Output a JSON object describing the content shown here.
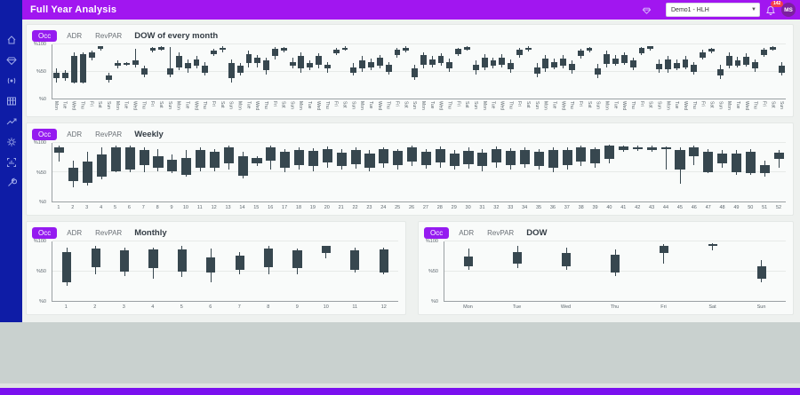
{
  "header": {
    "title": "Full Year Analysis",
    "property_selector_value": "Demo1 - HLH",
    "notification_count": "142",
    "avatar_initials": "MS"
  },
  "sidebar": {
    "items": [
      {
        "icon": "home-icon"
      },
      {
        "icon": "gem-icon"
      },
      {
        "icon": "broadcast-icon"
      },
      {
        "icon": "table-icon"
      },
      {
        "icon": "trend-line-icon"
      },
      {
        "icon": "gear-icon"
      },
      {
        "icon": "dashboard-frame-icon"
      },
      {
        "icon": "wrench-icon"
      }
    ]
  },
  "tab_labels": {
    "occ": "Occ",
    "adr": "ADR",
    "revpar": "RevPAR"
  },
  "colors": {
    "topbar": "#a116f0",
    "sidebar": "#0e1ca6",
    "active_tab": "#951bf0",
    "candle": "#37474f",
    "badge": "#f43f4b",
    "footer_bar": "#7a10ef"
  },
  "chart_data": [
    {
      "ref": "dow_of_every_month"
    },
    {
      "ref": "weekly"
    },
    {
      "ref": "monthly"
    },
    {
      "ref": "dow"
    }
  ],
  "charts": {
    "dow_of_every_month": {
      "type": "candlestick",
      "title": "DOW of every month",
      "ylim": [
        0,
        100
      ],
      "y_ticks": [
        "%0",
        "%50",
        "%100"
      ],
      "x_labels": [
        "Mon",
        "Tue",
        "Wed",
        "Thu",
        "Fri",
        "Sat",
        "Sun",
        "Mon",
        "Tue",
        "Wed",
        "Thu",
        "Fri",
        "Sat",
        "Sun",
        "Mon",
        "Tue",
        "Wed",
        "Thu",
        "Fri",
        "Sat",
        "Sun",
        "Mon",
        "Tue",
        "Wed",
        "Thu",
        "Fri",
        "Sat",
        "Sun",
        "Mon",
        "Tue",
        "Wed",
        "Thu",
        "Fri",
        "Sat",
        "Sun",
        "Mon",
        "Tue",
        "Wed",
        "Thu",
        "Fri",
        "Sat",
        "Sun",
        "Mon",
        "Tue",
        "Wed",
        "Thu",
        "Fri",
        "Sat",
        "Sun",
        "Mon",
        "Tue",
        "Wed",
        "Thu",
        "Fri",
        "Sat",
        "Sun",
        "Mon",
        "Tue",
        "Wed",
        "Thu",
        "Fri",
        "Sat",
        "Sun",
        "Mon",
        "Tue",
        "Wed",
        "Thu",
        "Fri",
        "Sat",
        "Sun",
        "Mon",
        "Tue",
        "Wed",
        "Thu",
        "Fri",
        "Sat",
        "Sun",
        "Mon",
        "Tue",
        "Wed",
        "Thu",
        "Fri",
        "Sat",
        "Sun"
      ],
      "candles": [
        [
          30,
          38,
          48,
          55
        ],
        [
          32,
          38,
          48,
          52
        ],
        [
          28,
          30,
          78,
          85
        ],
        [
          28,
          30,
          82,
          85
        ],
        [
          70,
          75,
          85,
          88
        ],
        [
          88,
          92,
          96,
          97
        ],
        [
          30,
          35,
          42,
          48
        ],
        [
          55,
          60,
          65,
          70
        ],
        [
          60,
          63,
          65,
          68
        ],
        [
          58,
          62,
          70,
          92
        ],
        [
          40,
          45,
          55,
          60
        ],
        [
          85,
          88,
          93,
          95
        ],
        [
          88,
          91,
          95,
          96
        ],
        [
          40,
          45,
          55,
          95
        ],
        [
          52,
          58,
          78,
          85
        ],
        [
          48,
          55,
          65,
          72
        ],
        [
          55,
          60,
          72,
          78
        ],
        [
          42,
          48,
          60,
          68
        ],
        [
          78,
          82,
          88,
          92
        ],
        [
          86,
          90,
          94,
          96
        ],
        [
          30,
          38,
          65,
          72
        ],
        [
          42,
          48,
          60,
          66
        ],
        [
          58,
          65,
          82,
          88
        ],
        [
          58,
          65,
          75,
          80
        ],
        [
          45,
          52,
          70,
          76
        ],
        [
          72,
          78,
          92,
          95
        ],
        [
          85,
          88,
          93,
          95
        ],
        [
          55,
          60,
          68,
          75
        ],
        [
          48,
          55,
          78,
          85
        ],
        [
          52,
          58,
          65,
          70
        ],
        [
          55,
          62,
          78,
          84
        ],
        [
          48,
          55,
          62,
          68
        ],
        [
          80,
          84,
          90,
          93
        ],
        [
          88,
          90,
          94,
          96
        ],
        [
          42,
          48,
          58,
          65
        ],
        [
          50,
          55,
          70,
          78
        ],
        [
          52,
          58,
          68,
          74
        ],
        [
          55,
          60,
          75,
          80
        ],
        [
          45,
          50,
          62,
          68
        ],
        [
          75,
          80,
          90,
          93
        ],
        [
          86,
          89,
          94,
          96
        ],
        [
          35,
          40,
          55,
          62
        ],
        [
          55,
          62,
          80,
          86
        ],
        [
          58,
          62,
          72,
          78
        ],
        [
          60,
          65,
          78,
          84
        ],
        [
          50,
          55,
          68,
          74
        ],
        [
          78,
          82,
          92,
          94
        ],
        [
          88,
          91,
          95,
          97
        ],
        [
          45,
          52,
          62,
          70
        ],
        [
          52,
          58,
          75,
          82
        ],
        [
          55,
          60,
          70,
          76
        ],
        [
          58,
          62,
          76,
          82
        ],
        [
          48,
          54,
          66,
          72
        ],
        [
          76,
          80,
          90,
          93
        ],
        [
          87,
          90,
          94,
          96
        ],
        [
          40,
          46,
          58,
          66
        ],
        [
          50,
          56,
          74,
          80
        ],
        [
          54,
          58,
          68,
          74
        ],
        [
          56,
          60,
          74,
          80
        ],
        [
          46,
          52,
          64,
          70
        ],
        [
          74,
          78,
          88,
          92
        ],
        [
          85,
          88,
          93,
          95
        ],
        [
          38,
          44,
          56,
          64
        ],
        [
          58,
          64,
          82,
          88
        ],
        [
          60,
          64,
          74,
          80
        ],
        [
          62,
          66,
          80,
          86
        ],
        [
          52,
          58,
          70,
          76
        ],
        [
          80,
          84,
          93,
          95
        ],
        [
          89,
          92,
          96,
          97
        ],
        [
          48,
          54,
          64,
          72
        ],
        [
          48,
          54,
          72,
          78
        ],
        [
          52,
          56,
          66,
          72
        ],
        [
          54,
          58,
          72,
          78
        ],
        [
          44,
          50,
          62,
          68
        ],
        [
          72,
          76,
          86,
          90
        ],
        [
          84,
          87,
          92,
          94
        ],
        [
          36,
          42,
          54,
          62
        ],
        [
          55,
          60,
          78,
          85
        ],
        [
          57,
          61,
          71,
          77
        ],
        [
          59,
          63,
          77,
          83
        ],
        [
          49,
          55,
          67,
          73
        ],
        [
          77,
          81,
          91,
          94
        ],
        [
          88,
          90,
          95,
          96
        ],
        [
          42,
          48,
          60,
          68
        ]
      ]
    },
    "weekly": {
      "type": "candlestick",
      "title": "Weekly",
      "ylim": [
        0,
        100
      ],
      "y_ticks": [
        "%0",
        "%50",
        "%100"
      ],
      "x_labels": [
        "1",
        "2",
        "3",
        "4",
        "5",
        "6",
        "7",
        "8",
        "9",
        "10",
        "11",
        "12",
        "13",
        "14",
        "15",
        "16",
        "17",
        "18",
        "19",
        "20",
        "21",
        "22",
        "23",
        "24",
        "25",
        "26",
        "27",
        "28",
        "29",
        "30",
        "31",
        "32",
        "33",
        "34",
        "35",
        "36",
        "37",
        "38",
        "39",
        "40",
        "41",
        "42",
        "43",
        "44",
        "45",
        "46",
        "47",
        "48",
        "49",
        "50",
        "51",
        "52"
      ],
      "candles": [
        [
          68,
          83,
          93,
          95
        ],
        [
          25,
          35,
          58,
          70
        ],
        [
          28,
          32,
          68,
          85
        ],
        [
          38,
          42,
          80,
          92
        ],
        [
          50,
          52,
          92,
          95
        ],
        [
          50,
          55,
          92,
          95
        ],
        [
          50,
          62,
          88,
          92
        ],
        [
          52,
          58,
          78,
          90
        ],
        [
          48,
          52,
          72,
          80
        ],
        [
          42,
          46,
          75,
          88
        ],
        [
          52,
          58,
          88,
          92
        ],
        [
          52,
          58,
          85,
          90
        ],
        [
          55,
          65,
          92,
          95
        ],
        [
          40,
          44,
          78,
          85
        ],
        [
          60,
          65,
          74,
          78
        ],
        [
          55,
          70,
          92,
          95
        ],
        [
          50,
          58,
          85,
          90
        ],
        [
          55,
          62,
          88,
          93
        ],
        [
          52,
          60,
          86,
          91
        ],
        [
          58,
          66,
          90,
          94
        ],
        [
          54,
          60,
          84,
          90
        ],
        [
          56,
          64,
          88,
          92
        ],
        [
          52,
          58,
          82,
          88
        ],
        [
          58,
          65,
          90,
          93
        ],
        [
          55,
          62,
          86,
          90
        ],
        [
          60,
          68,
          92,
          95
        ],
        [
          56,
          62,
          85,
          90
        ],
        [
          58,
          66,
          90,
          94
        ],
        [
          54,
          60,
          82,
          88
        ],
        [
          56,
          64,
          87,
          92
        ],
        [
          52,
          60,
          84,
          89
        ],
        [
          58,
          66,
          90,
          94
        ],
        [
          55,
          62,
          86,
          91
        ],
        [
          57,
          64,
          88,
          92
        ],
        [
          55,
          60,
          85,
          90
        ],
        [
          50,
          58,
          88,
          92
        ],
        [
          55,
          62,
          88,
          92
        ],
        [
          60,
          68,
          92,
          95
        ],
        [
          58,
          65,
          90,
          93
        ],
        [
          65,
          72,
          95,
          97
        ],
        [
          85,
          88,
          94,
          96
        ],
        [
          86,
          89,
          93,
          95
        ],
        [
          85,
          88,
          93,
          95
        ],
        [
          55,
          90,
          93,
          94
        ],
        [
          30,
          55,
          88,
          92
        ],
        [
          62,
          78,
          93,
          95
        ],
        [
          48,
          50,
          85,
          90
        ],
        [
          58,
          65,
          82,
          88
        ],
        [
          45,
          50,
          82,
          88
        ],
        [
          45,
          48,
          85,
          90
        ],
        [
          42,
          48,
          62,
          70
        ],
        [
          58,
          72,
          84,
          88
        ]
      ]
    },
    "monthly": {
      "type": "candlestick",
      "title": "Monthly",
      "ylim": [
        0,
        100
      ],
      "y_ticks": [
        "%0",
        "%50",
        "%100"
      ],
      "x_labels": [
        "1",
        "2",
        "3",
        "4",
        "5",
        "6",
        "7",
        "8",
        "9",
        "10",
        "11",
        "12"
      ],
      "candles": [
        [
          25,
          32,
          82,
          90
        ],
        [
          45,
          57,
          88,
          92
        ],
        [
          42,
          50,
          85,
          90
        ],
        [
          38,
          55,
          86,
          90
        ],
        [
          40,
          50,
          87,
          92
        ],
        [
          32,
          48,
          73,
          88
        ],
        [
          45,
          52,
          76,
          82
        ],
        [
          45,
          57,
          88,
          92
        ],
        [
          45,
          55,
          85,
          88
        ],
        [
          72,
          81,
          92,
          93
        ],
        [
          48,
          52,
          85,
          90
        ],
        [
          45,
          48,
          86,
          90
        ]
      ]
    },
    "dow": {
      "type": "candlestick",
      "title": "DOW",
      "ylim": [
        0,
        100
      ],
      "y_ticks": [
        "%0",
        "%50",
        "%100"
      ],
      "x_labels": [
        "Mon",
        "Tue",
        "Wed",
        "Thu",
        "Fri",
        "Sat",
        "Sun"
      ],
      "candles": [
        [
          52,
          58,
          75,
          88
        ],
        [
          55,
          62,
          82,
          93
        ],
        [
          52,
          58,
          80,
          90
        ],
        [
          42,
          48,
          78,
          87
        ],
        [
          62,
          80,
          93,
          96
        ],
        [
          85,
          92,
          96,
          97
        ],
        [
          32,
          38,
          58,
          68
        ]
      ]
    }
  }
}
